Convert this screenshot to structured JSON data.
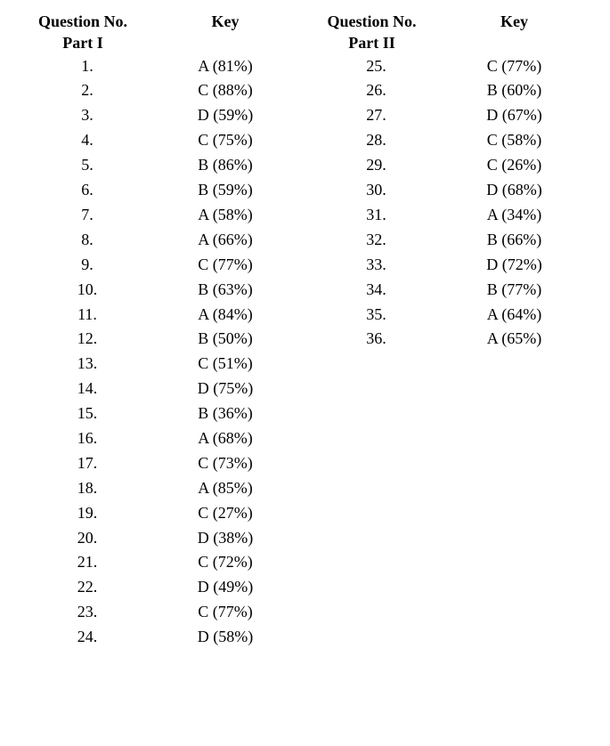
{
  "headers": {
    "question_no": "Question No.",
    "key": "Key"
  },
  "parts": {
    "part1_label": "Part I",
    "part2_label": "Part II"
  },
  "left": [
    {
      "q": "1.",
      "k": "A (81%)"
    },
    {
      "q": "2.",
      "k": "C (88%)"
    },
    {
      "q": "3.",
      "k": "D (59%)"
    },
    {
      "q": "4.",
      "k": "C (75%)"
    },
    {
      "q": "5.",
      "k": "B (86%)"
    },
    {
      "q": "6.",
      "k": "B (59%)"
    },
    {
      "q": "7.",
      "k": "A (58%)"
    },
    {
      "q": "8.",
      "k": "A (66%)"
    },
    {
      "q": "9.",
      "k": "C (77%)"
    },
    {
      "q": "10.",
      "k": "B (63%)"
    },
    {
      "q": "11.",
      "k": "A (84%)"
    },
    {
      "q": "12.",
      "k": "B (50%)"
    },
    {
      "q": "13.",
      "k": "C (51%)"
    },
    {
      "q": "14.",
      "k": "D (75%)"
    },
    {
      "q": "15.",
      "k": "B (36%)"
    },
    {
      "q": "16.",
      "k": "A (68%)"
    },
    {
      "q": "17.",
      "k": "C (73%)"
    },
    {
      "q": "18.",
      "k": "A (85%)"
    },
    {
      "q": "19.",
      "k": "C (27%)"
    },
    {
      "q": "20.",
      "k": "D (38%)"
    },
    {
      "q": "21.",
      "k": "C (72%)"
    },
    {
      "q": "22.",
      "k": "D (49%)"
    },
    {
      "q": "23.",
      "k": "C (77%)"
    },
    {
      "q": "24.",
      "k": "D (58%)"
    }
  ],
  "right": [
    {
      "q": "25.",
      "k": "C (77%)"
    },
    {
      "q": "26.",
      "k": "B (60%)"
    },
    {
      "q": "27.",
      "k": "D (67%)"
    },
    {
      "q": "28.",
      "k": "C (58%)"
    },
    {
      "q": "29.",
      "k": "C (26%)"
    },
    {
      "q": "30.",
      "k": "D (68%)"
    },
    {
      "q": "31.",
      "k": "A (34%)"
    },
    {
      "q": "32.",
      "k": "B (66%)"
    },
    {
      "q": "33.",
      "k": "D (72%)"
    },
    {
      "q": "34.",
      "k": "B (77%)"
    },
    {
      "q": "35.",
      "k": "A (64%)"
    },
    {
      "q": "36.",
      "k": "A (65%)"
    }
  ]
}
